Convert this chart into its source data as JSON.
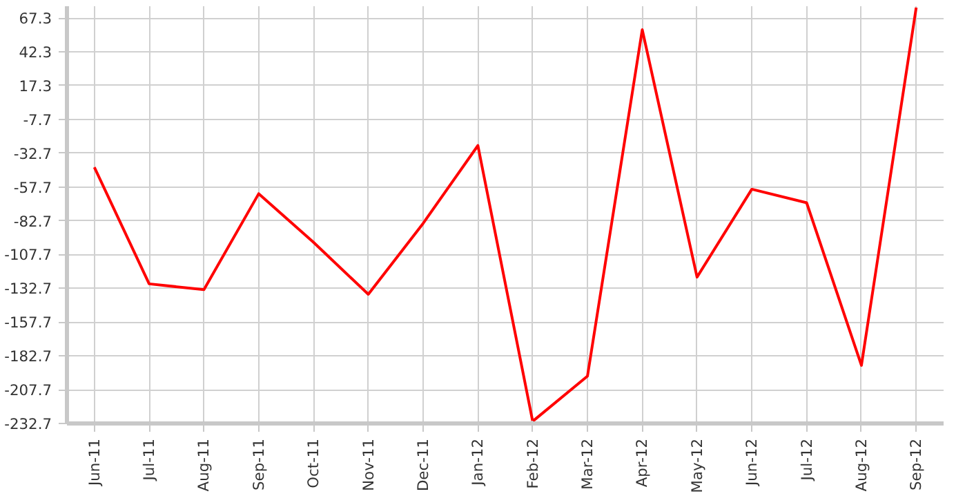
{
  "chart_data": {
    "type": "line",
    "categories": [
      "Jun-11",
      "Jul-11",
      "Aug-11",
      "Sep-11",
      "Oct-11",
      "Nov-11",
      "Dec-11",
      "Jan-12",
      "Feb-12",
      "Mar-12",
      "Apr-12",
      "May-12",
      "Jun-12",
      "Jul-12",
      "Aug-12",
      "Sep-12"
    ],
    "series": [
      {
        "color": "#ff0000",
        "values": [
          -43.1,
          -129.4,
          -133.7,
          -62.7,
          -98.7,
          -137.1,
          -84.7,
          -27.1,
          -231.1,
          -197.7,
          58.6,
          -124.4,
          -59.4,
          -69.4,
          -189.7,
          75
        ]
      }
    ],
    "ylim": [
      -232.7,
      76
    ],
    "yticks": [
      -232.7,
      -207.7,
      -182.7,
      -157.7,
      -132.7,
      -107.7,
      -82.7,
      -57.7,
      -32.7,
      -7.7,
      17.3,
      42.3,
      67.3
    ],
    "grid": true,
    "marker": "none",
    "line_style": "solid"
  }
}
